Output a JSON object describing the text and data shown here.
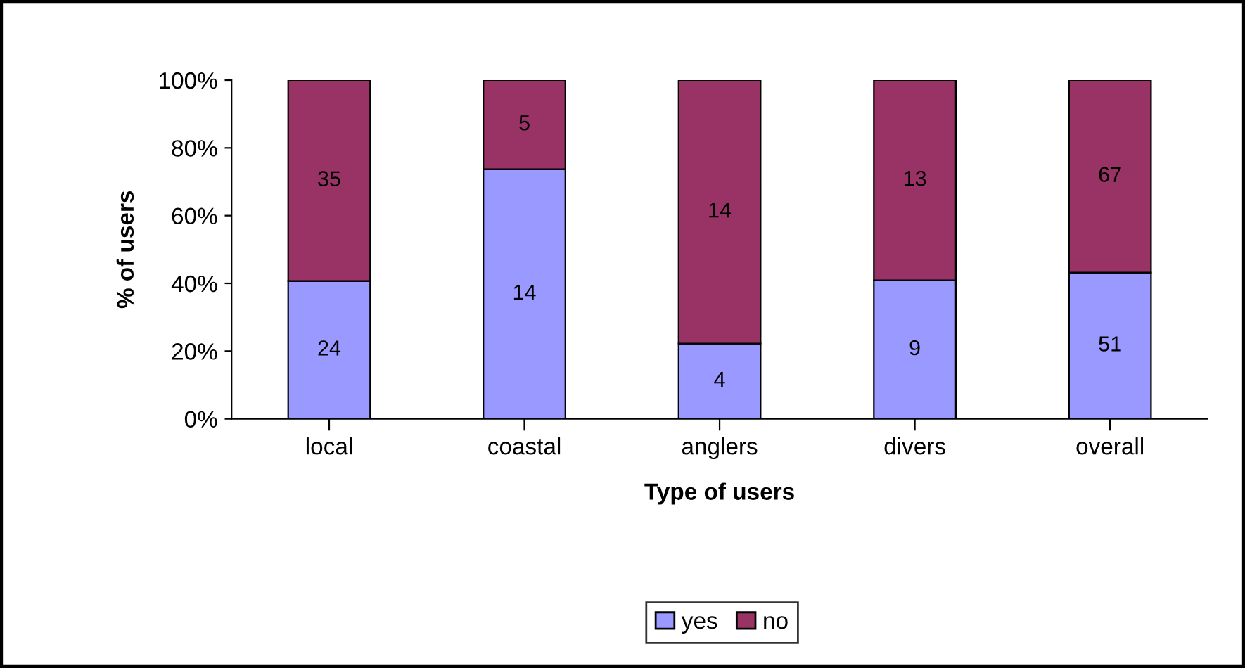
{
  "chart_data": {
    "type": "bar",
    "stacked": true,
    "xlabel": "Type of users",
    "ylabel": "% of users",
    "categories": [
      "local",
      "coastal",
      "anglers",
      "divers",
      "overall"
    ],
    "series": [
      {
        "name": "yes",
        "color": "#9999ff",
        "values": [
          40.7,
          73.7,
          22.2,
          40.9,
          43.2
        ]
      },
      {
        "name": "no",
        "color": "#993366",
        "values": [
          59.3,
          26.3,
          77.8,
          59.1,
          56.8
        ]
      }
    ],
    "annotations": [
      "24",
      "14",
      "4",
      "9",
      "51",
      "35",
      "5",
      "14",
      "13",
      "67"
    ],
    "ylim": [
      0,
      100
    ],
    "yticks": [
      {
        "value": 0,
        "label": "0%"
      },
      {
        "value": 20,
        "label": "20%"
      },
      {
        "value": 40,
        "label": "40%"
      },
      {
        "value": 60,
        "label": "60%"
      },
      {
        "value": 80,
        "label": "80%"
      },
      {
        "value": 100,
        "label": "100%"
      }
    ],
    "grid": false,
    "legend": "bottom"
  }
}
